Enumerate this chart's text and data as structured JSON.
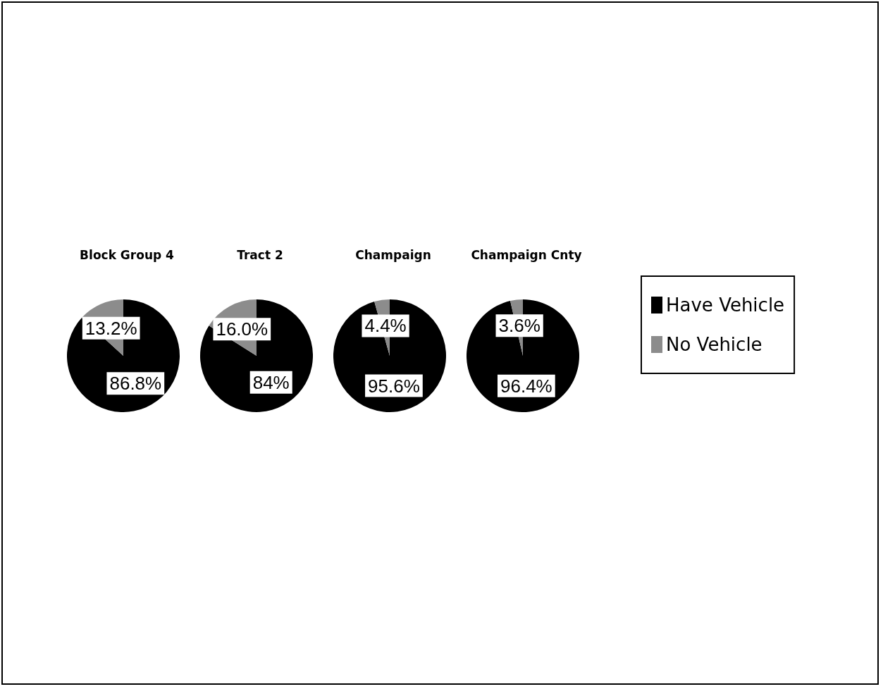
{
  "chart_data": {
    "type": "pie",
    "categories": [
      "Have Vehicle",
      "No Vehicle"
    ],
    "colors": [
      "#000000",
      "#8c8c8c"
    ],
    "legend": "right",
    "series": [
      {
        "name": "Block Group 4",
        "values": [
          86.8,
          13.2
        ],
        "value_labels": [
          "86.8%",
          "13.2%"
        ]
      },
      {
        "name": "Tract 2",
        "values": [
          84,
          16.0
        ],
        "value_labels": [
          "84%",
          "16.0%"
        ]
      },
      {
        "name": "Champaign",
        "values": [
          95.6,
          4.4
        ],
        "value_labels": [
          "95.6%",
          "4.4%"
        ]
      },
      {
        "name": "Champaign Cnty",
        "values": [
          96.4,
          3.6
        ],
        "value_labels": [
          "96.4%",
          "3.6%"
        ]
      }
    ]
  }
}
